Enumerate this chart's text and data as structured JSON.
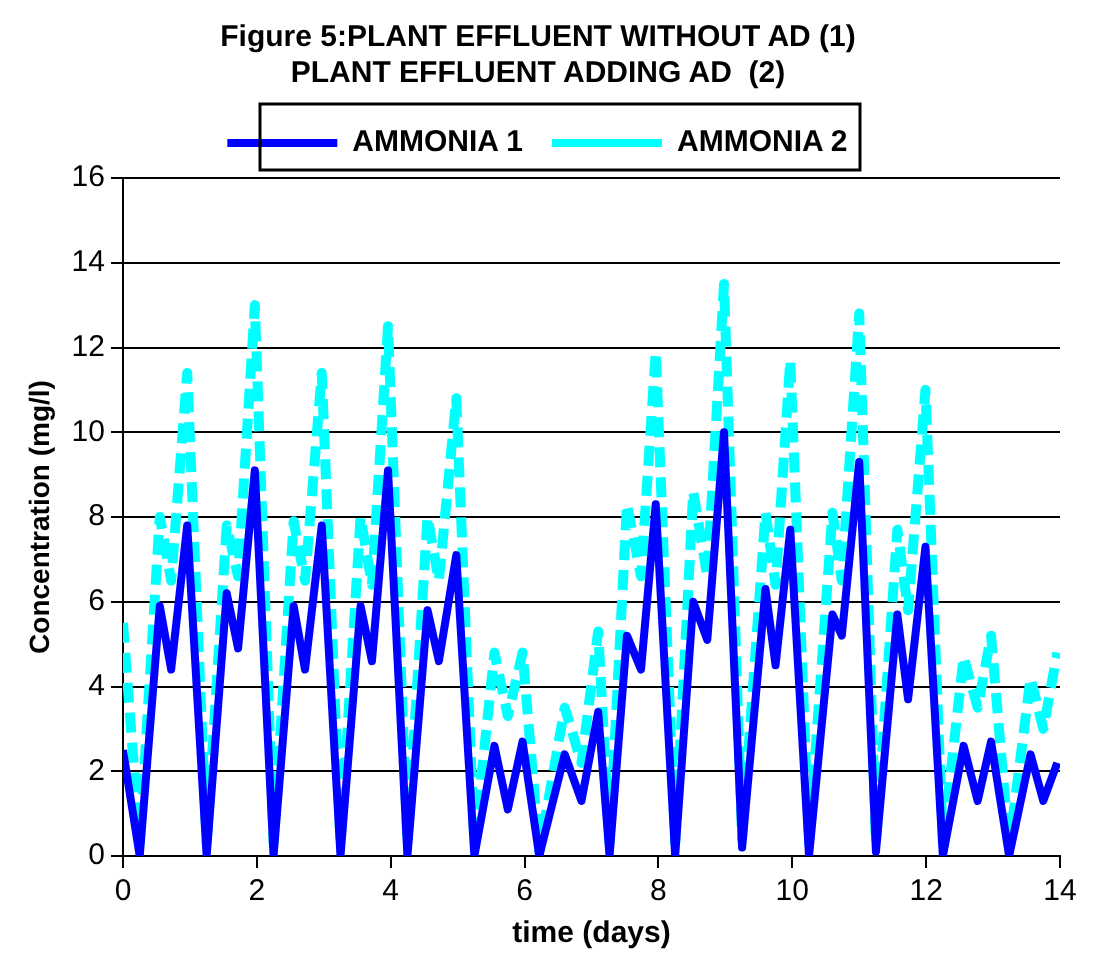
{
  "chart_data": {
    "type": "line",
    "title": [
      "Figure 5:PLANT EFFLUENT WITHOUT AD (1)",
      "PLANT EFFLUENT ADDING AD  (2)"
    ],
    "xlabel": "time (days)",
    "ylabel": "Concentration (mg/l)",
    "x": [
      0,
      0.25,
      0.55,
      0.72,
      0.96,
      1.25,
      1.55,
      1.72,
      1.97,
      2.25,
      2.55,
      2.72,
      2.97,
      3.25,
      3.55,
      3.72,
      3.96,
      4.25,
      4.55,
      4.72,
      4.98,
      5.25,
      5.55,
      5.75,
      5.97,
      6.22,
      6.6,
      6.85,
      7.1,
      7.27,
      7.53,
      7.74,
      7.96,
      8.25,
      8.52,
      8.73,
      8.98,
      9.25,
      9.6,
      9.75,
      9.97,
      10.25,
      10.6,
      10.74,
      11.0,
      11.25,
      11.57,
      11.73,
      11.99,
      12.25,
      12.56,
      12.77,
      12.97,
      13.24,
      13.56,
      13.75,
      13.96
    ],
    "series": [
      {
        "name": "AMMONIA 1",
        "color": "#0000ff",
        "line_style": "solid",
        "values": [
          2.5,
          0,
          5.9,
          4.4,
          7.8,
          0,
          6.2,
          4.9,
          9.1,
          0,
          5.9,
          4.4,
          7.8,
          0,
          5.9,
          4.6,
          9.1,
          0,
          5.8,
          4.6,
          7.1,
          0,
          2.6,
          1.1,
          2.7,
          0,
          2.4,
          1.3,
          3.4,
          0,
          5.2,
          4.4,
          8.3,
          0,
          6.0,
          5.1,
          10.0,
          0.2,
          6.3,
          4.5,
          7.7,
          0,
          5.7,
          5.2,
          9.3,
          0.1,
          5.7,
          3.7,
          7.3,
          0,
          2.6,
          1.3,
          2.7,
          0,
          2.4,
          1.3,
          2.2
        ]
      },
      {
        "name": "AMMONIA 2",
        "color": "#00ffff",
        "line_style": "dashed",
        "values": [
          5.5,
          0.3,
          8.0,
          6.5,
          11.4,
          0.3,
          7.8,
          6.6,
          13.0,
          0.3,
          7.9,
          6.5,
          11.4,
          0.3,
          8.0,
          6.4,
          12.5,
          0.3,
          8.0,
          6.5,
          10.8,
          0.3,
          4.8,
          3.3,
          4.8,
          0.1,
          3.5,
          2.2,
          5.3,
          0.3,
          8.3,
          6.6,
          11.9,
          0.3,
          8.6,
          6.6,
          13.5,
          0.4,
          8.1,
          6.4,
          11.7,
          0.3,
          8.1,
          6.5,
          12.8,
          0.3,
          7.7,
          5.8,
          11.0,
          0.3,
          4.7,
          3.5,
          5.2,
          0.2,
          4.2,
          3.0,
          4.8
        ]
      }
    ],
    "xlim": [
      0,
      14
    ],
    "xticks": [
      0,
      2,
      4,
      6,
      8,
      10,
      12,
      14
    ],
    "ylim": [
      0,
      16
    ],
    "yticks": [
      0,
      2,
      4,
      6,
      8,
      10,
      12,
      14,
      16
    ],
    "grid": "y",
    "legend": "top",
    "marker": "none"
  }
}
